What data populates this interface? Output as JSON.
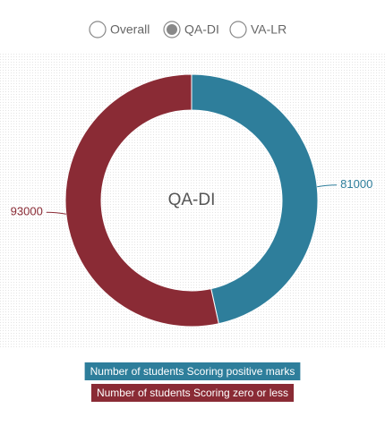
{
  "tabs": {
    "options": [
      "Overall",
      "QA-DI",
      "VA-LR"
    ],
    "selected": 1
  },
  "chart_data": {
    "type": "donut",
    "center_label": "QA-DI",
    "series": [
      {
        "name": "Number of students Scoring positive marks",
        "color": "#2e7e9b",
        "values": [
          81000
        ]
      },
      {
        "name": "Number of students Scoring zero or less",
        "color": "#8a2b35",
        "values": [
          93000
        ]
      }
    ]
  }
}
